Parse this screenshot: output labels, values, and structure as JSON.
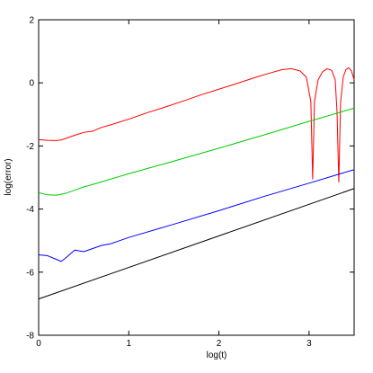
{
  "chart_data": {
    "type": "line",
    "title": "",
    "xlabel": "log(t)",
    "ylabel": "log(error)",
    "xlim": [
      0,
      3.5
    ],
    "ylim": [
      -8,
      2
    ],
    "xticks": [
      0,
      1,
      2,
      3
    ],
    "yticks": [
      -8,
      -6,
      -4,
      -2,
      0,
      2
    ],
    "grid": false,
    "legend": "none",
    "series": [
      {
        "color": "#ff0000",
        "x": [
          0.0,
          0.1,
          0.2,
          0.25,
          0.3,
          0.4,
          0.5,
          0.6,
          0.65,
          0.7,
          0.8,
          1.0,
          1.2,
          1.4,
          1.6,
          1.8,
          2.0,
          2.2,
          2.4,
          2.55,
          2.7,
          2.8,
          2.9,
          2.97,
          3.02,
          3.04,
          3.06,
          3.1,
          3.15,
          3.2,
          3.25,
          3.29,
          3.31,
          3.33,
          3.35,
          3.38,
          3.41,
          3.44,
          3.47,
          3.5
        ],
        "values": [
          -1.8,
          -1.82,
          -1.83,
          -1.81,
          -1.76,
          -1.66,
          -1.57,
          -1.53,
          -1.47,
          -1.41,
          -1.33,
          -1.15,
          -0.95,
          -0.77,
          -0.58,
          -0.38,
          -0.2,
          -0.02,
          0.17,
          0.3,
          0.42,
          0.45,
          0.38,
          0.18,
          -0.6,
          -3.05,
          -0.6,
          0.1,
          0.35,
          0.45,
          0.4,
          0.1,
          -0.9,
          -3.15,
          -0.6,
          0.2,
          0.42,
          0.48,
          0.38,
          0.1
        ]
      },
      {
        "color": "#00cc00",
        "x": [
          0.0,
          0.1,
          0.2,
          0.3,
          0.4,
          0.5,
          0.6,
          0.8,
          1.0,
          1.5,
          2.0,
          2.5,
          3.0,
          3.5
        ],
        "values": [
          -3.48,
          -3.55,
          -3.56,
          -3.5,
          -3.4,
          -3.3,
          -3.22,
          -3.05,
          -2.88,
          -2.48,
          -2.07,
          -1.65,
          -1.22,
          -0.8
        ]
      },
      {
        "color": "#0000ff",
        "x": [
          0.0,
          0.1,
          0.2,
          0.25,
          0.3,
          0.4,
          0.5,
          0.6,
          0.7,
          0.8,
          1.0,
          1.5,
          2.0,
          2.5,
          3.0,
          3.5
        ],
        "values": [
          -5.45,
          -5.48,
          -5.6,
          -5.66,
          -5.55,
          -5.3,
          -5.35,
          -5.25,
          -5.15,
          -5.1,
          -4.9,
          -4.48,
          -4.05,
          -3.6,
          -3.18,
          -2.75
        ]
      },
      {
        "color": "#000000",
        "x": [
          0.0,
          3.5
        ],
        "values": [
          -6.85,
          -3.35
        ]
      }
    ]
  }
}
